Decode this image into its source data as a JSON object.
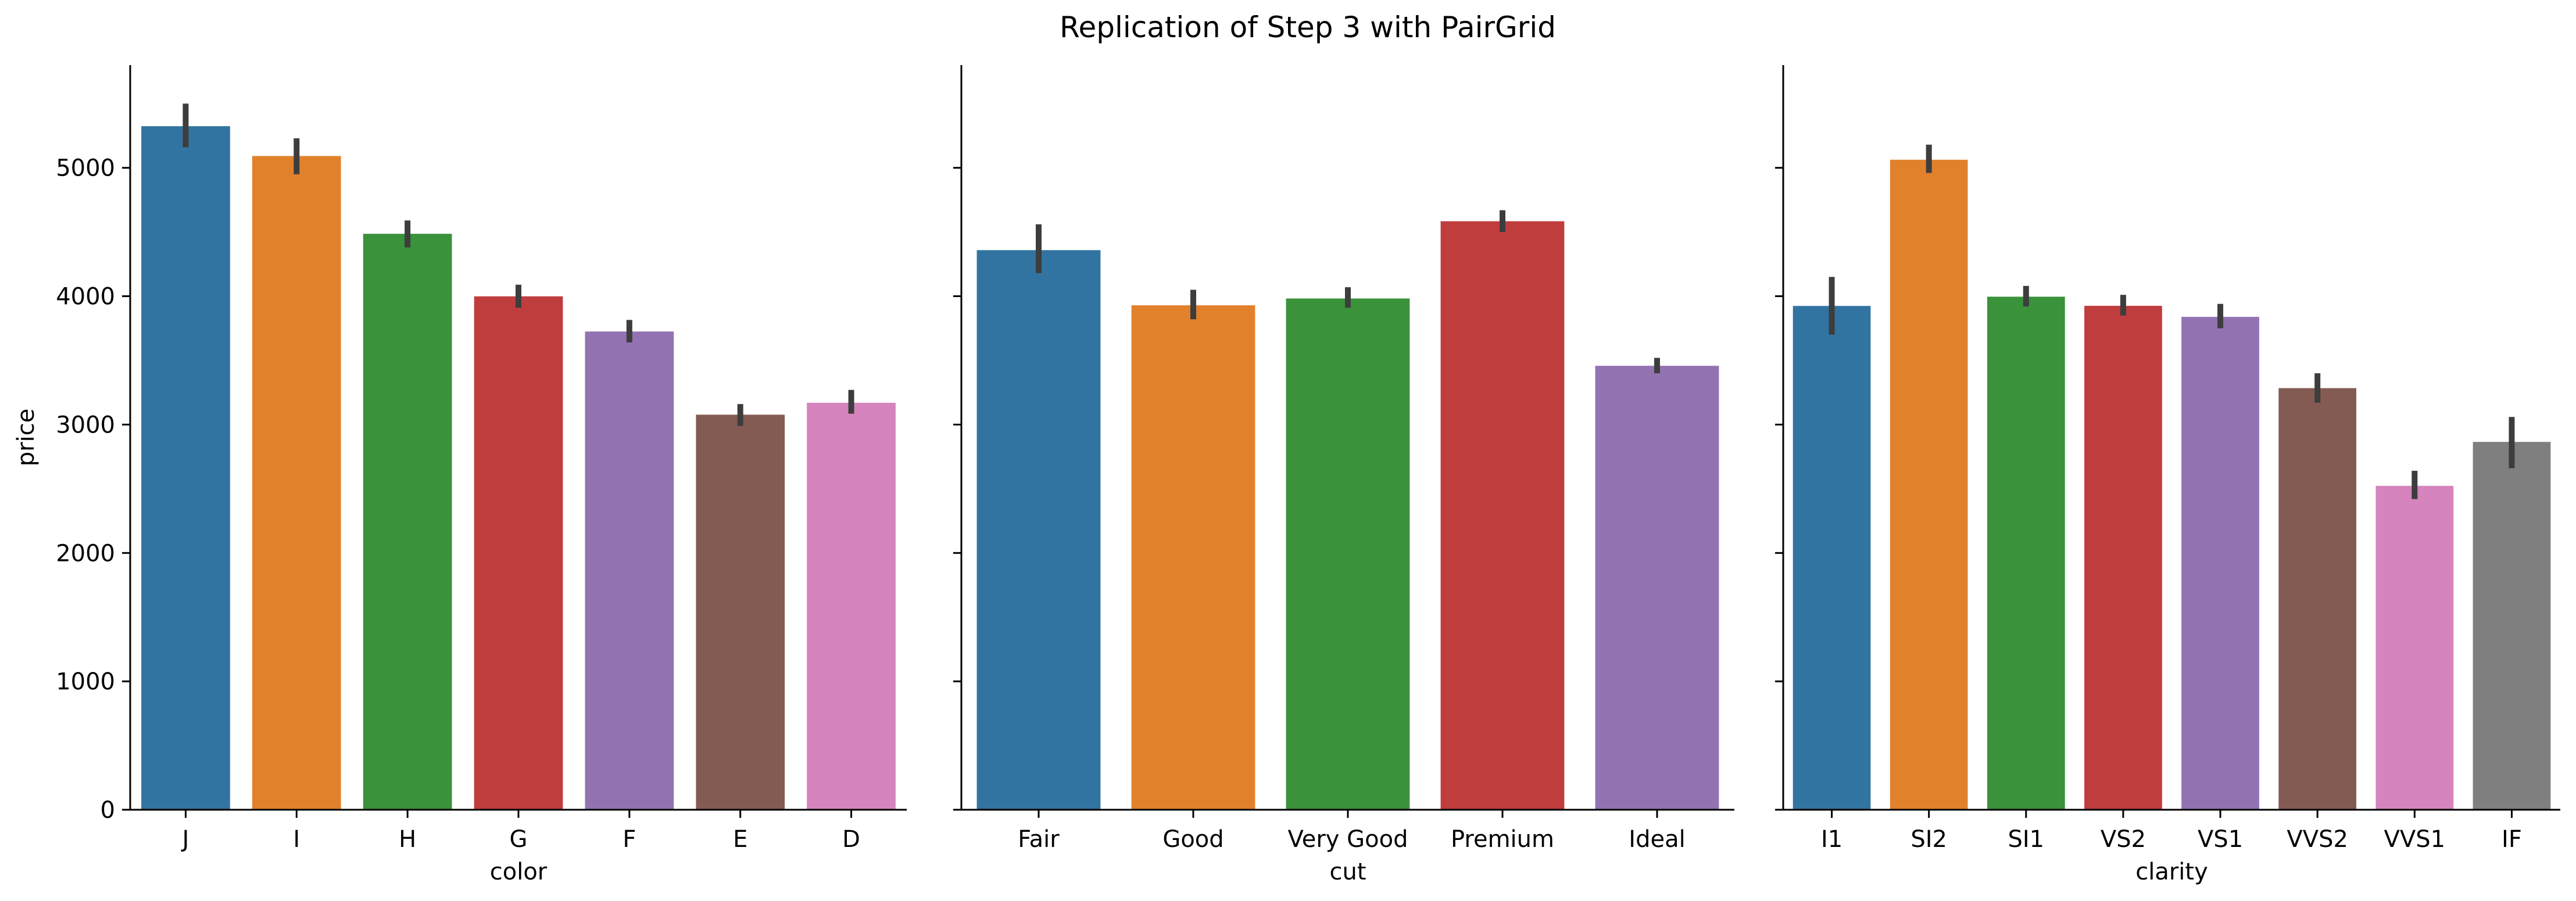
{
  "figure": {
    "title": "Replication of Step 3 with PairGrid"
  },
  "chart_data": [
    {
      "type": "bar",
      "xlabel": "color",
      "ylabel": "price",
      "ylim": [
        0,
        5800
      ],
      "yticks": [
        0,
        1000,
        2000,
        3000,
        4000,
        5000
      ],
      "ytick_labels": [
        "0",
        "1000",
        "2000",
        "3000",
        "4000",
        "5000"
      ],
      "categories": [
        "J",
        "I",
        "H",
        "G",
        "F",
        "E",
        "D"
      ],
      "values": [
        5324,
        5092,
        4486,
        3999,
        3725,
        3077,
        3170
      ],
      "ci_low": [
        5160,
        4950,
        4380,
        3910,
        3640,
        2990,
        3085
      ],
      "ci_high": [
        5500,
        5230,
        4590,
        4090,
        3815,
        3160,
        3270
      ],
      "colors": [
        "#3274a1",
        "#e1812c",
        "#3a923a",
        "#c03d3e",
        "#9372b2",
        "#845b53",
        "#d684bd"
      ],
      "grid": false
    },
    {
      "type": "bar",
      "xlabel": "cut",
      "ylabel": "",
      "ylim": [
        0,
        5800
      ],
      "yticks": [
        0,
        1000,
        2000,
        3000,
        4000,
        5000
      ],
      "categories": [
        "Fair",
        "Good",
        "Very Good",
        "Premium",
        "Ideal"
      ],
      "values": [
        4359,
        3929,
        3982,
        4584,
        3458
      ],
      "ci_low": [
        4180,
        3820,
        3910,
        4500,
        3400
      ],
      "ci_high": [
        4560,
        4050,
        4070,
        4670,
        3520
      ],
      "colors": [
        "#3274a1",
        "#e1812c",
        "#3a923a",
        "#c03d3e",
        "#9372b2"
      ],
      "grid": false
    },
    {
      "type": "bar",
      "xlabel": "clarity",
      "ylabel": "",
      "ylim": [
        0,
        5800
      ],
      "yticks": [
        0,
        1000,
        2000,
        3000,
        4000,
        5000
      ],
      "categories": [
        "I1",
        "SI2",
        "SI1",
        "VS2",
        "VS1",
        "VVS2",
        "VVS1",
        "IF"
      ],
      "values": [
        3924,
        5063,
        3996,
        3925,
        3839,
        3284,
        2523,
        2865
      ],
      "ci_low": [
        3700,
        4960,
        3920,
        3850,
        3750,
        3170,
        2420,
        2660
      ],
      "ci_high": [
        4150,
        5180,
        4080,
        4010,
        3940,
        3400,
        2640,
        3060
      ],
      "colors": [
        "#3274a1",
        "#e1812c",
        "#3a923a",
        "#c03d3e",
        "#9372b2",
        "#845b53",
        "#d684bd",
        "#7f7f7f"
      ],
      "grid": false
    }
  ]
}
